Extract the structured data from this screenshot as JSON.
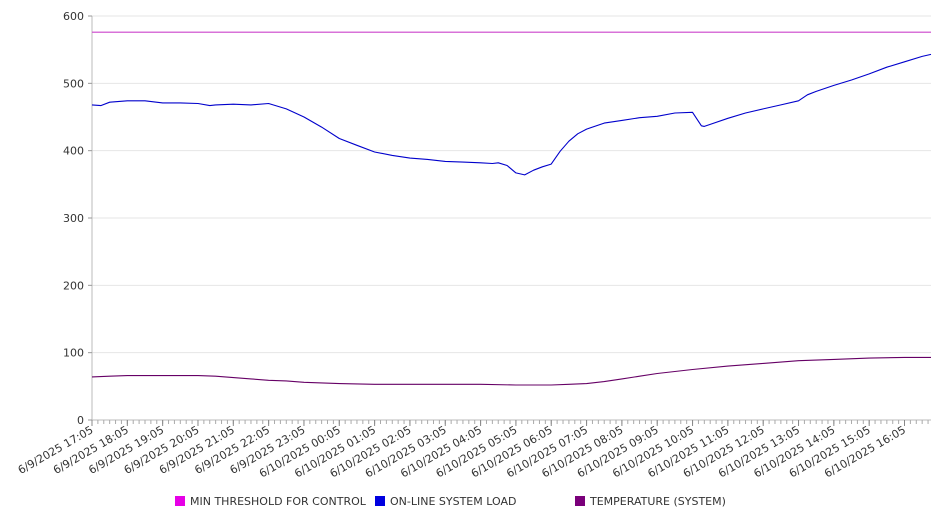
{
  "chart_data": {
    "type": "line",
    "title": "",
    "xlabel": "",
    "ylabel": "",
    "ylim": [
      0,
      600
    ],
    "y_ticks": [
      0,
      100,
      200,
      300,
      400,
      500,
      600
    ],
    "grid": "horizontal",
    "legend_position": "bottom",
    "x_tick_labels": [
      "6/9/2025 17:05",
      "6/9/2025 18:05",
      "6/9/2025 19:05",
      "6/9/2025 20:05",
      "6/9/2025 21:05",
      "6/9/2025 22:05",
      "6/9/2025 23:05",
      "6/10/2025 00:05",
      "6/10/2025 01:05",
      "6/10/2025 02:05",
      "6/10/2025 03:05",
      "6/10/2025 04:05",
      "6/10/2025 05:05",
      "6/10/2025 06:05",
      "6/10/2025 07:05",
      "6/10/2025 08:05",
      "6/10/2025 09:05",
      "6/10/2025 10:05",
      "6/10/2025 11:05",
      "6/10/2025 12:05",
      "6/10/2025 13:05",
      "6/10/2025 14:05",
      "6/10/2025 15:05",
      "6/10/2025 16:05"
    ],
    "series": [
      {
        "name": "MIN THRESHOLD FOR CONTROL",
        "color": "#e600e6",
        "line_color": "#cc44cc",
        "x": [
          "6/9/2025 17:05",
          "6/10/2025 16:50"
        ],
        "values": [
          576,
          576
        ]
      },
      {
        "name": "ON-LINE SYSTEM LOAD",
        "color": "#0000e0",
        "line_color": "#0000cc",
        "x": [
          "6/9/2025 17:05",
          "6/9/2025 17:20",
          "6/9/2025 17:35",
          "6/9/2025 18:05",
          "6/9/2025 18:35",
          "6/9/2025 19:05",
          "6/9/2025 19:35",
          "6/9/2025 20:05",
          "6/9/2025 20:25",
          "6/9/2025 20:35",
          "6/9/2025 21:05",
          "6/9/2025 21:35",
          "6/9/2025 22:05",
          "6/9/2025 22:35",
          "6/9/2025 23:05",
          "6/9/2025 23:35",
          "6/10/2025 00:05",
          "6/10/2025 00:35",
          "6/10/2025 01:05",
          "6/10/2025 01:35",
          "6/10/2025 02:05",
          "6/10/2025 02:35",
          "6/10/2025 03:05",
          "6/10/2025 03:35",
          "6/10/2025 04:05",
          "6/10/2025 04:25",
          "6/10/2025 04:35",
          "6/10/2025 04:50",
          "6/10/2025 05:05",
          "6/10/2025 05:20",
          "6/10/2025 05:35",
          "6/10/2025 05:50",
          "6/10/2025 06:05",
          "6/10/2025 06:20",
          "6/10/2025 06:35",
          "6/10/2025 06:50",
          "6/10/2025 07:05",
          "6/10/2025 07:35",
          "6/10/2025 08:05",
          "6/10/2025 08:35",
          "6/10/2025 09:05",
          "6/10/2025 09:35",
          "6/10/2025 10:05",
          "6/10/2025 10:20",
          "6/10/2025 10:25",
          "6/10/2025 10:35",
          "6/10/2025 11:05",
          "6/10/2025 11:35",
          "6/10/2025 12:05",
          "6/10/2025 12:35",
          "6/10/2025 13:05",
          "6/10/2025 13:20",
          "6/10/2025 13:35",
          "6/10/2025 14:05",
          "6/10/2025 14:35",
          "6/10/2025 15:05",
          "6/10/2025 15:35",
          "6/10/2025 16:05",
          "6/10/2025 16:35",
          "6/10/2025 16:50"
        ],
        "values": [
          468,
          467,
          472,
          474,
          474,
          471,
          471,
          470,
          467,
          468,
          469,
          468,
          470,
          462,
          450,
          435,
          418,
          408,
          398,
          393,
          389,
          387,
          384,
          383,
          382,
          381,
          382,
          378,
          367,
          364,
          371,
          376,
          380,
          399,
          414,
          425,
          432,
          441,
          445,
          449,
          451,
          456,
          457,
          437,
          436,
          439,
          448,
          456,
          462,
          468,
          474,
          483,
          488,
          497,
          505,
          514,
          524,
          532,
          540,
          543
        ]
      },
      {
        "name": "TEMPERATURE (SYSTEM)",
        "color": "#7a007a",
        "line_color": "#660066",
        "x": [
          "6/9/2025 17:05",
          "6/9/2025 17:35",
          "6/9/2025 18:05",
          "6/9/2025 19:05",
          "6/9/2025 20:05",
          "6/9/2025 20:35",
          "6/9/2025 21:05",
          "6/9/2025 21:35",
          "6/9/2025 22:05",
          "6/9/2025 22:35",
          "6/9/2025 23:05",
          "6/10/2025 00:05",
          "6/10/2025 01:05",
          "6/10/2025 02:05",
          "6/10/2025 03:05",
          "6/10/2025 04:05",
          "6/10/2025 05:05",
          "6/10/2025 06:05",
          "6/10/2025 06:35",
          "6/10/2025 07:05",
          "6/10/2025 07:35",
          "6/10/2025 08:05",
          "6/10/2025 08:35",
          "6/10/2025 09:05",
          "6/10/2025 10:05",
          "6/10/2025 11:05",
          "6/10/2025 12:05",
          "6/10/2025 13:05",
          "6/10/2025 14:05",
          "6/10/2025 15:05",
          "6/10/2025 16:05",
          "6/10/2025 16:50"
        ],
        "values": [
          64,
          65,
          66,
          66,
          66,
          65,
          63,
          61,
          59,
          58,
          56,
          54,
          53,
          53,
          53,
          53,
          52,
          52,
          53,
          54,
          57,
          61,
          65,
          69,
          75,
          80,
          84,
          88,
          90,
          92,
          93,
          93
        ]
      }
    ]
  }
}
